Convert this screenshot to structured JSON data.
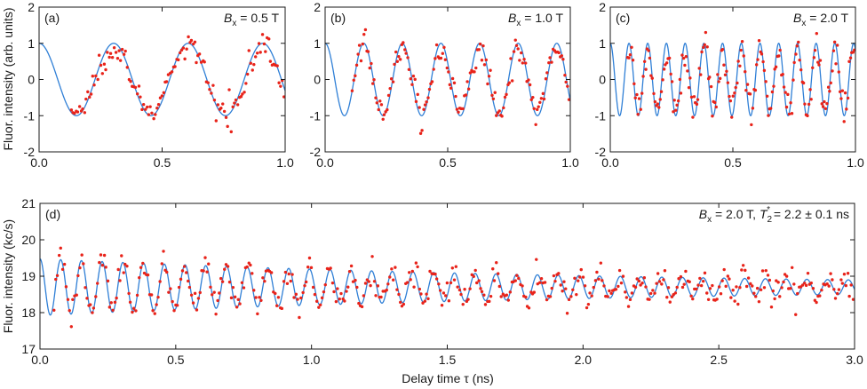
{
  "figure": {
    "ylabel_top": "Fluor. intensity (arb. units)",
    "ylabel_bottom": "Fluor. intensity (kc/s)",
    "xlabel": "Delay time τ (ns)"
  },
  "colors": {
    "fit": "#2f7fd6",
    "data": "#e8231a",
    "axis": "#1a1a1a"
  },
  "chart_data": [
    {
      "type": "scatter",
      "panel": "(a)",
      "annotation": {
        "B": "B",
        "sub": "x",
        "rest": " = 0.5 T"
      },
      "xlim": [
        0.0,
        1.0
      ],
      "ylim": [
        -2,
        2
      ],
      "xticks": [
        0.0,
        0.5,
        1.0
      ],
      "xtick_labels": [
        "0.0",
        "0.5",
        "1.0"
      ],
      "yticks": [
        -2,
        -1,
        0,
        1,
        2
      ],
      "ytick_labels": [
        "-2",
        "-1",
        "0",
        "1",
        "2"
      ],
      "fit": {
        "model": "A*cos(2*pi*f*t)+offset",
        "amplitude": 1.0,
        "frequency_GHz": 3.3,
        "offset": 0.0,
        "t_start": 0.0,
        "t_end": 1.0
      },
      "data_points": {
        "t_start": 0.13,
        "t_end": 1.0,
        "count": 130,
        "noise": 0.18,
        "amplitude": 0.92
      },
      "series": [
        {
          "name": "fit",
          "style": "line"
        },
        {
          "name": "measurement",
          "style": "markers"
        }
      ]
    },
    {
      "type": "scatter",
      "panel": "(b)",
      "annotation": {
        "B": "B",
        "sub": "x",
        "rest": " = 1.0 T"
      },
      "xlim": [
        0.0,
        1.0
      ],
      "ylim": [
        -2,
        2
      ],
      "xticks": [
        0.0,
        0.5,
        1.0
      ],
      "xtick_labels": [
        "0.0",
        "0.5",
        "1.0"
      ],
      "yticks": [
        -2,
        -1,
        0,
        1,
        2
      ],
      "ytick_labels": [
        "-2",
        "-1",
        "0",
        "1",
        "2"
      ],
      "fit": {
        "model": "A*cos(2*pi*f*t)+offset",
        "amplitude": 1.0,
        "frequency_GHz": 6.35,
        "offset": 0.0,
        "t_start": 0.0,
        "t_end": 1.0
      },
      "data_points": {
        "t_start": 0.11,
        "t_end": 1.0,
        "count": 150,
        "noise": 0.2,
        "amplitude": 0.9
      },
      "series": [
        {
          "name": "fit",
          "style": "line"
        },
        {
          "name": "measurement",
          "style": "markers"
        }
      ]
    },
    {
      "type": "scatter",
      "panel": "(c)",
      "annotation": {
        "B": "B",
        "sub": "x",
        "rest": " = 2.0 T"
      },
      "xlim": [
        0.0,
        1.0
      ],
      "ylim": [
        -2,
        2
      ],
      "xticks": [
        0.0,
        0.5,
        1.0
      ],
      "xtick_labels": [
        "0.0",
        "0.5",
        "1.0"
      ],
      "yticks": [
        -2,
        -1,
        0,
        1,
        2
      ],
      "ytick_labels": [
        "-2",
        "-1",
        "0",
        "1",
        "2"
      ],
      "fit": {
        "model": "A*cos(2*pi*f*t)+offset",
        "amplitude": 1.0,
        "frequency_GHz": 13.1,
        "offset": 0.0,
        "t_start": 0.0,
        "t_end": 1.0
      },
      "data_points": {
        "t_start": 0.07,
        "t_end": 1.0,
        "count": 175,
        "noise": 0.25,
        "amplitude": 0.85
      },
      "series": [
        {
          "name": "fit",
          "style": "line"
        },
        {
          "name": "measurement",
          "style": "markers"
        }
      ]
    },
    {
      "type": "scatter",
      "panel": "(d)",
      "annotation": {
        "B": "B",
        "sub": "x",
        "rest": " = 2.0 T, ",
        "T": "T",
        "tsub": "2",
        "tsup": "*",
        "trest": " = 2.2 ± 0.1 ns"
      },
      "xlim": [
        0.0,
        3.0
      ],
      "ylim": [
        17,
        21
      ],
      "xticks": [
        0.0,
        0.5,
        1.0,
        1.5,
        2.0,
        2.5,
        3.0
      ],
      "xtick_labels": [
        "0.0",
        "0.5",
        "1.0",
        "1.5",
        "2.0",
        "2.5",
        "3.0"
      ],
      "yticks": [
        17,
        18,
        19,
        20,
        21
      ],
      "ytick_labels": [
        "17",
        "18",
        "19",
        "20",
        "21"
      ],
      "fit": {
        "model": "offset + A*exp(-t/T2)*cos(2*pi*f*t)",
        "amplitude": 0.78,
        "frequency_GHz": 13.1,
        "offset": 18.7,
        "T2_ns": 2.2,
        "t_start": 0.0,
        "t_end": 3.0
      },
      "data_points": {
        "t_start": 0.05,
        "t_end": 3.0,
        "count": 460,
        "noise": 0.18,
        "amplitude": 0.78
      },
      "series": [
        {
          "name": "fit",
          "style": "line"
        },
        {
          "name": "measurement",
          "style": "markers"
        }
      ]
    }
  ]
}
